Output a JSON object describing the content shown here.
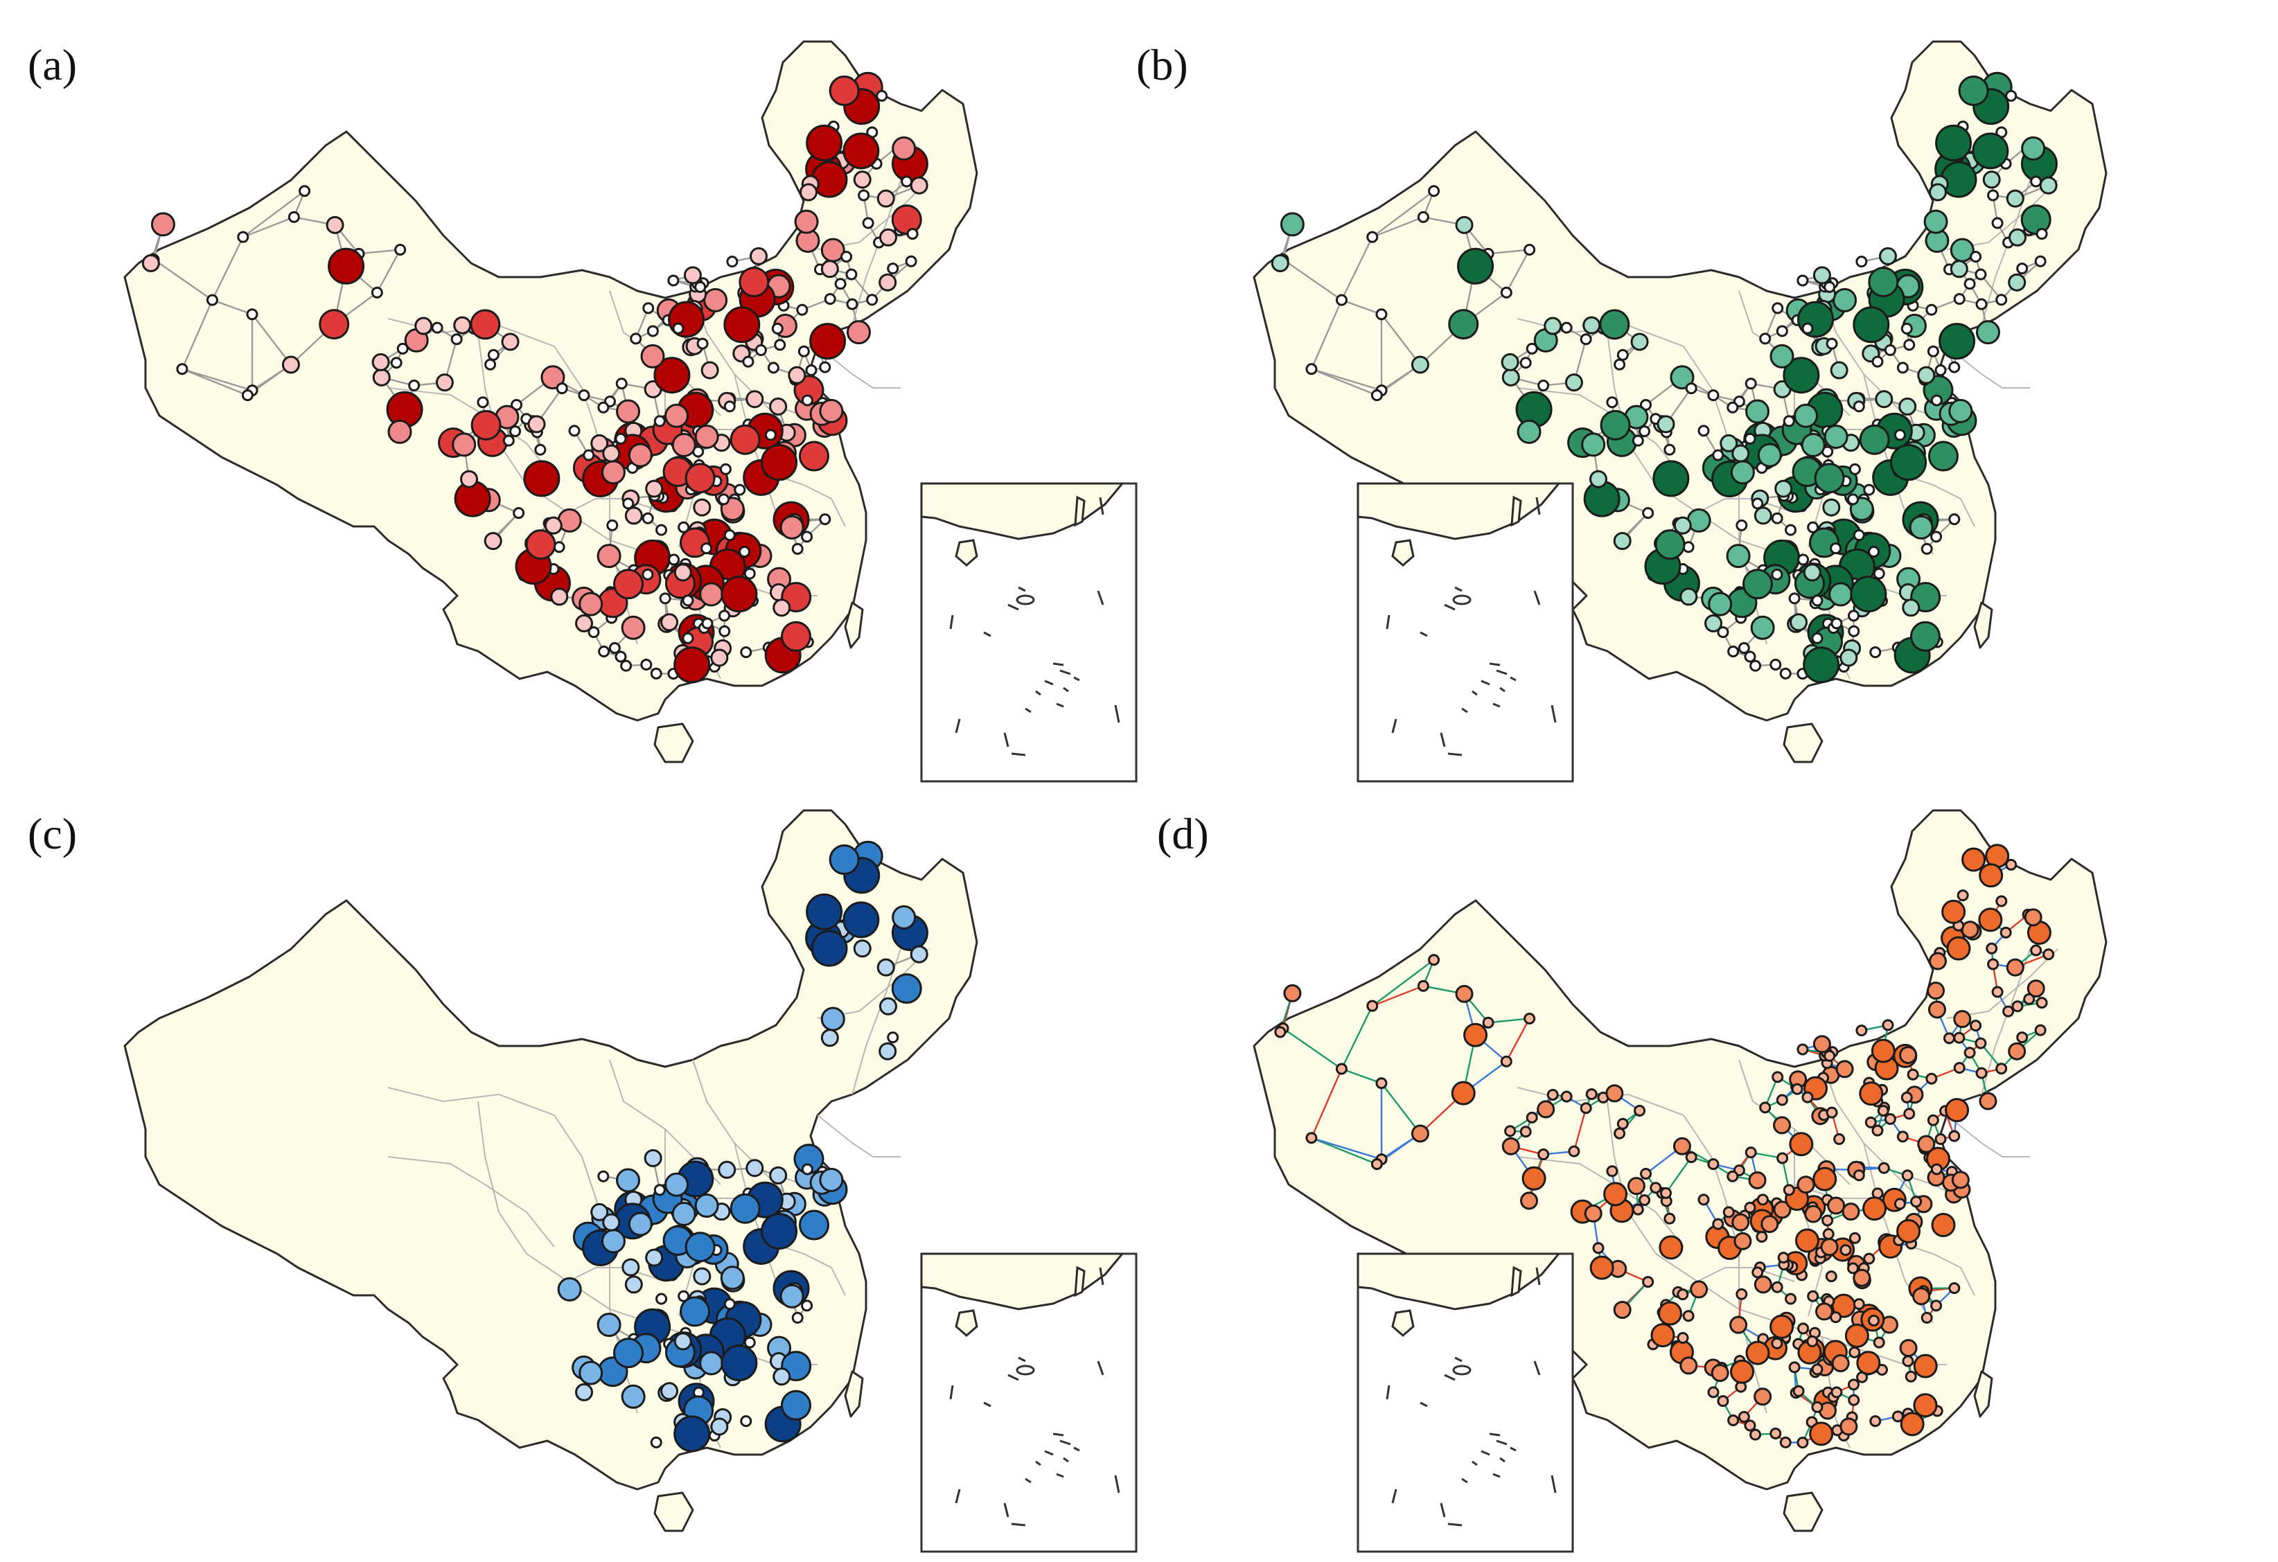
{
  "figure": {
    "panels": [
      {
        "id": "a",
        "label": "(a)"
      },
      {
        "id": "b",
        "label": "(b)"
      },
      {
        "id": "c",
        "label": "(c)"
      },
      {
        "id": "d",
        "label": "(d)"
      }
    ]
  },
  "colors": {
    "land": "#fdfce6",
    "border": "#2b2b2b",
    "province": "#b7b7b7",
    "edge_gray": "#9a9a9a",
    "edge_red": "#e03a2a",
    "edge_green": "#1a9a6a",
    "edge_blue": "#3a78d8",
    "panel_a_scale": [
      "#ffffff",
      "#f9c6c6",
      "#f08a8a",
      "#de3a3a",
      "#b30000"
    ],
    "panel_b_scale": [
      "#ffffff",
      "#a9dcc8",
      "#5fba95",
      "#2e8f60",
      "#0f6a3c"
    ],
    "panel_c_scale": [
      "#ffffff",
      "#b8d6f2",
      "#7ab4e6",
      "#2f7ec7",
      "#0d3f87"
    ],
    "panel_d_scale": [
      "#f6b49a",
      "#f08a5e",
      "#ee6a2a"
    ]
  }
}
